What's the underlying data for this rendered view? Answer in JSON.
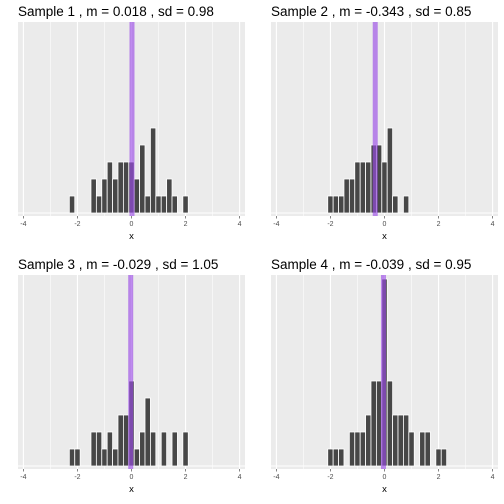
{
  "colors": {
    "panel_bg": "#ebebeb",
    "grid_major": "#ffffff",
    "bar_fill": "#474747",
    "bar_edge": "#ffffff",
    "mean_line": "#9b4de6"
  },
  "chart_data": [
    {
      "type": "bar",
      "title": "Sample 1 , m = 0.018 , sd = 0.98",
      "xlabel": "x",
      "xlim": [
        -4.2,
        4.2
      ],
      "xticks": [
        "-4",
        "-2",
        "0",
        "2",
        "4"
      ],
      "bin_width": 0.2,
      "mean": 0.018,
      "grid": "on",
      "bins": [
        {
          "x": -2.2,
          "count": 1
        },
        {
          "x": -1.4,
          "count": 2
        },
        {
          "x": -1.2,
          "count": 1
        },
        {
          "x": -1.0,
          "count": 2
        },
        {
          "x": -0.8,
          "count": 3
        },
        {
          "x": -0.6,
          "count": 2
        },
        {
          "x": -0.4,
          "count": 3
        },
        {
          "x": -0.2,
          "count": 3
        },
        {
          "x": 0.0,
          "count": 3
        },
        {
          "x": 0.2,
          "count": 2
        },
        {
          "x": 0.4,
          "count": 4
        },
        {
          "x": 0.6,
          "count": 1
        },
        {
          "x": 0.8,
          "count": 5
        },
        {
          "x": 1.0,
          "count": 1
        },
        {
          "x": 1.2,
          "count": 1
        },
        {
          "x": 1.4,
          "count": 2
        },
        {
          "x": 1.6,
          "count": 1
        },
        {
          "x": 2.0,
          "count": 1
        }
      ]
    },
    {
      "type": "bar",
      "title": "Sample 2 , m = -0.343 , sd = 0.85",
      "xlabel": "x",
      "xlim": [
        -4.2,
        4.2
      ],
      "xticks": [
        "-4",
        "-2",
        "0",
        "2",
        "4"
      ],
      "bin_width": 0.2,
      "mean": -0.343,
      "grid": "on",
      "bins": [
        {
          "x": -2.0,
          "count": 1
        },
        {
          "x": -1.8,
          "count": 1
        },
        {
          "x": -1.6,
          "count": 1
        },
        {
          "x": -1.4,
          "count": 2
        },
        {
          "x": -1.2,
          "count": 2
        },
        {
          "x": -1.0,
          "count": 3
        },
        {
          "x": -0.8,
          "count": 3
        },
        {
          "x": -0.6,
          "count": 3
        },
        {
          "x": -0.4,
          "count": 4
        },
        {
          "x": -0.2,
          "count": 4
        },
        {
          "x": 0.0,
          "count": 3
        },
        {
          "x": 0.2,
          "count": 5
        },
        {
          "x": 0.4,
          "count": 1
        },
        {
          "x": 0.8,
          "count": 1
        }
      ]
    },
    {
      "type": "bar",
      "title": "Sample 3 , m = -0.029 , sd = 1.05",
      "xlabel": "x",
      "xlim": [
        -4.2,
        4.2
      ],
      "xticks": [
        "-4",
        "-2",
        "0",
        "2",
        "4"
      ],
      "bin_width": 0.2,
      "mean": -0.029,
      "grid": "on",
      "bins": [
        {
          "x": -2.2,
          "count": 1
        },
        {
          "x": -2.0,
          "count": 1
        },
        {
          "x": -1.4,
          "count": 2
        },
        {
          "x": -1.2,
          "count": 2
        },
        {
          "x": -1.0,
          "count": 1
        },
        {
          "x": -0.8,
          "count": 2
        },
        {
          "x": -0.6,
          "count": 1
        },
        {
          "x": -0.4,
          "count": 3
        },
        {
          "x": -0.2,
          "count": 3
        },
        {
          "x": 0.0,
          "count": 5
        },
        {
          "x": 0.2,
          "count": 1
        },
        {
          "x": 0.4,
          "count": 2
        },
        {
          "x": 0.6,
          "count": 4
        },
        {
          "x": 0.8,
          "count": 2
        },
        {
          "x": 1.2,
          "count": 2
        },
        {
          "x": 1.6,
          "count": 2
        },
        {
          "x": 2.0,
          "count": 2
        }
      ]
    },
    {
      "type": "bar",
      "title": "Sample 4 , m = -0.039 , sd = 0.95",
      "xlabel": "x",
      "xlim": [
        -4.2,
        4.2
      ],
      "xticks": [
        "-4",
        "-2",
        "0",
        "2",
        "4"
      ],
      "bin_width": 0.2,
      "mean": -0.039,
      "grid": "on",
      "bins": [
        {
          "x": -2.0,
          "count": 1
        },
        {
          "x": -1.8,
          "count": 1
        },
        {
          "x": -1.6,
          "count": 1
        },
        {
          "x": -1.2,
          "count": 2
        },
        {
          "x": -1.0,
          "count": 2
        },
        {
          "x": -0.8,
          "count": 2
        },
        {
          "x": -0.6,
          "count": 3
        },
        {
          "x": -0.4,
          "count": 5
        },
        {
          "x": -0.2,
          "count": 5
        },
        {
          "x": 0.0,
          "count": 11
        },
        {
          "x": 0.2,
          "count": 5
        },
        {
          "x": 0.4,
          "count": 3
        },
        {
          "x": 0.6,
          "count": 3
        },
        {
          "x": 0.8,
          "count": 3
        },
        {
          "x": 1.0,
          "count": 2
        },
        {
          "x": 1.4,
          "count": 2
        },
        {
          "x": 1.6,
          "count": 2
        },
        {
          "x": 2.0,
          "count": 1
        },
        {
          "x": 2.2,
          "count": 1
        }
      ]
    }
  ]
}
